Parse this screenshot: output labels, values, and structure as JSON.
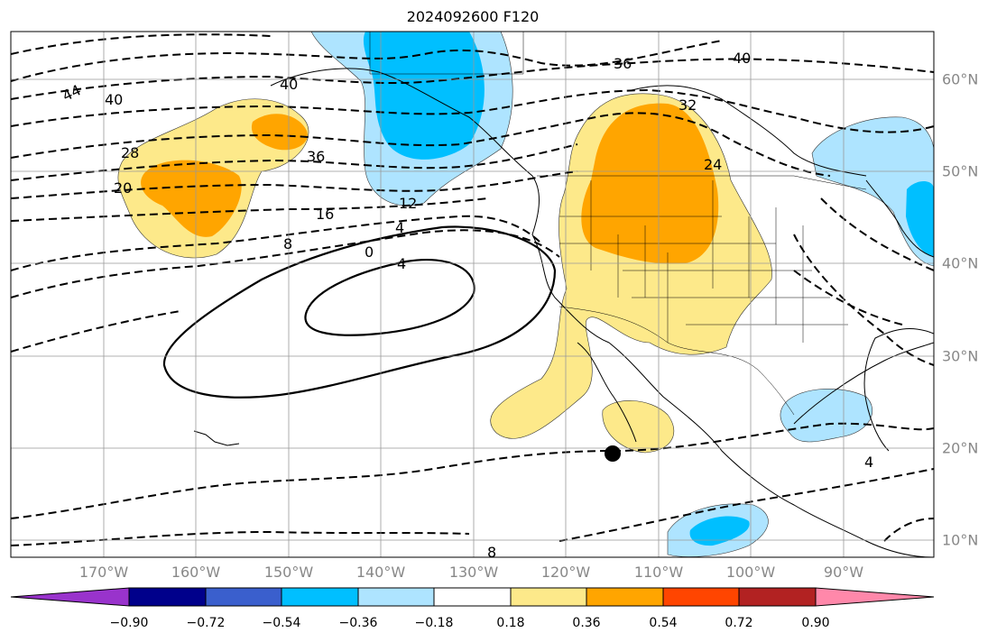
{
  "title": "2024092600 F120",
  "longitude_labels": [
    "170°W",
    "160°W",
    "150°W",
    "140°W",
    "130°W",
    "120°W",
    "110°W",
    "100°W",
    "90°W"
  ],
  "latitude_labels": [
    "60°N",
    "50°N",
    "40°N",
    "30°N",
    "20°N",
    "10°N"
  ],
  "contour_labels": [
    "44",
    "40",
    "40",
    "36",
    "28",
    "20",
    "16",
    "8",
    "12",
    "4",
    "0",
    "4",
    "36",
    "40",
    "32",
    "24",
    "4",
    "8"
  ],
  "colorbar": {
    "ticks": [
      "−0.90",
      "−0.72",
      "−0.54",
      "−0.36",
      "−0.18",
      "0.18",
      "0.36",
      "0.54",
      "0.72",
      "0.90"
    ],
    "colors": {
      "under": "#9933cc",
      "bins": [
        "#00008b",
        "#3a5fcd",
        "#00bfff",
        "#aee4ff",
        "#ffffff",
        "#fde98a",
        "#ffa500",
        "#ff4500",
        "#b22222"
      ],
      "over": "#ff88aa"
    }
  }
}
